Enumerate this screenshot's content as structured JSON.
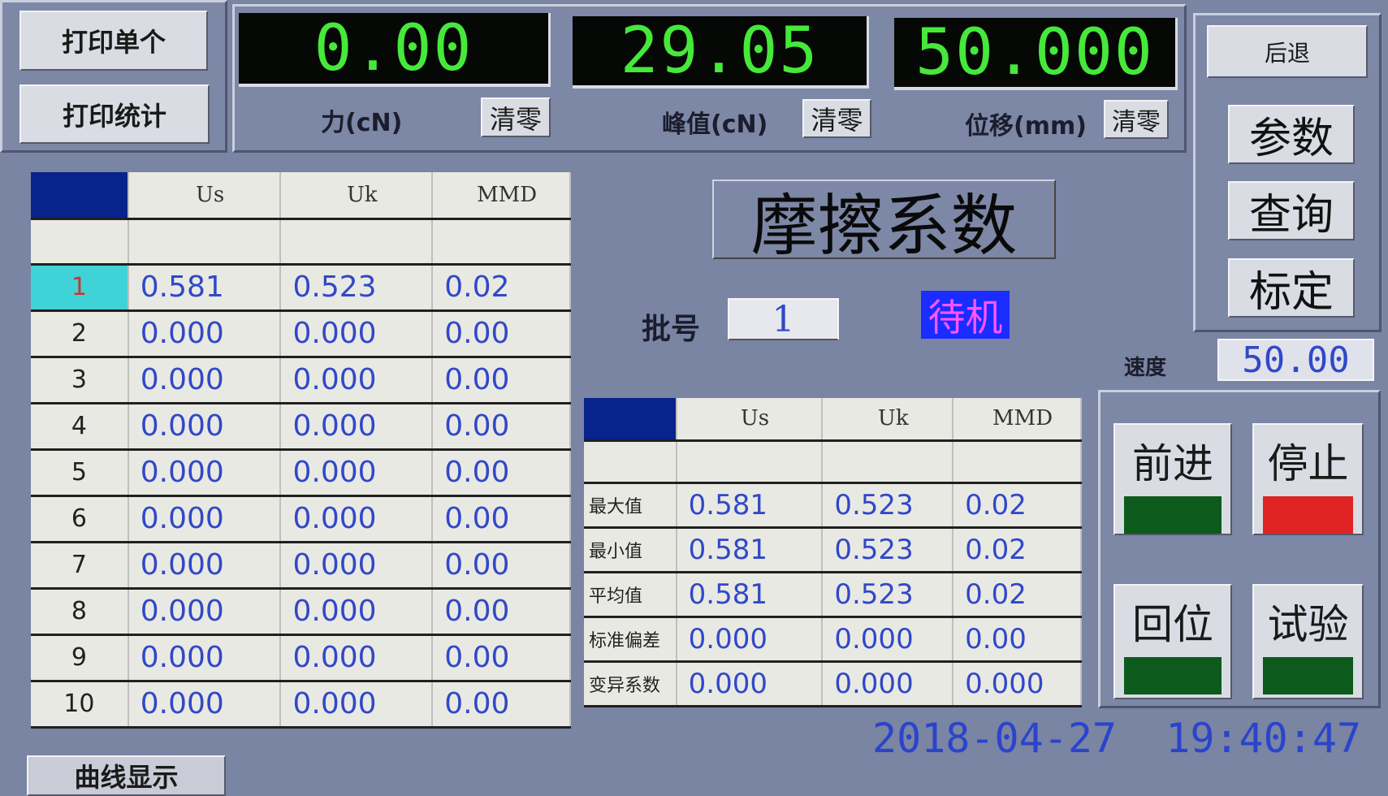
{
  "left_buttons": {
    "print_single": "打印单个",
    "print_stats": "打印统计"
  },
  "displays": [
    {
      "value": "0.00",
      "label": "力(cN)",
      "zero": "清零"
    },
    {
      "value": "29.05",
      "label": "峰值(cN)",
      "zero": "清零"
    },
    {
      "value": "50.000",
      "label": "位移(mm)",
      "zero": "清零"
    }
  ],
  "right_buttons": {
    "back": "后退",
    "params": "参数",
    "query": "查询",
    "calibrate": "标定"
  },
  "title": "摩擦系数",
  "batch": {
    "label": "批号",
    "value": "1"
  },
  "status": {
    "text": "待机",
    "bg": "#1a2cff",
    "color": "#ff55ff"
  },
  "speed": {
    "label": "速度",
    "value": "50.00"
  },
  "results_table": {
    "headers": [
      "Us",
      "Uk",
      "MMD"
    ],
    "rows": [
      [
        "1",
        "0.581",
        "0.523",
        "0.02"
      ],
      [
        "2",
        "0.000",
        "0.000",
        "0.00"
      ],
      [
        "3",
        "0.000",
        "0.000",
        "0.00"
      ],
      [
        "4",
        "0.000",
        "0.000",
        "0.00"
      ],
      [
        "5",
        "0.000",
        "0.000",
        "0.00"
      ],
      [
        "6",
        "0.000",
        "0.000",
        "0.00"
      ],
      [
        "7",
        "0.000",
        "0.000",
        "0.00"
      ],
      [
        "8",
        "0.000",
        "0.000",
        "0.00"
      ],
      [
        "9",
        "0.000",
        "0.000",
        "0.00"
      ],
      [
        "10",
        "0.000",
        "0.000",
        "0.00"
      ]
    ]
  },
  "stats_table": {
    "headers": [
      "Us",
      "Uk",
      "MMD"
    ],
    "rows": [
      [
        "最大值",
        "0.581",
        "0.523",
        "0.02"
      ],
      [
        "最小值",
        "0.581",
        "0.523",
        "0.02"
      ],
      [
        "平均值",
        "0.581",
        "0.523",
        "0.02"
      ],
      [
        "标准偏差",
        "0.000",
        "0.000",
        "0.00"
      ],
      [
        "变异系数",
        "0.000",
        "0.000",
        "0.000"
      ]
    ]
  },
  "controls": {
    "forward": "前进",
    "stop": "停止",
    "home": "回位",
    "test": "试验",
    "green": "#0c5a1c",
    "red": "#e02424"
  },
  "datetime": "2018-04-27  19:40:47",
  "curve_tab": "曲线显示"
}
